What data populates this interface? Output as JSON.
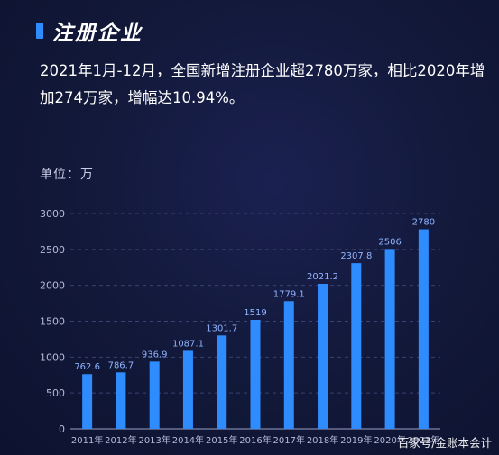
{
  "header": {
    "title": "注册企业"
  },
  "summary": "2021年1月-12月，全国新增注册企业超2780万家，相比2020年增加274万家，增幅达10.94%。",
  "unit_label": "单位：万",
  "watermark": "百家号/金账本会计",
  "colors": {
    "bar": "#2f8cff",
    "value_label": "#8fb4ff",
    "background": "#121838"
  },
  "chart_data": {
    "type": "bar",
    "categories": [
      "2011年",
      "2012年",
      "2013年",
      "2014年",
      "2015年",
      "2016年",
      "2017年",
      "2018年",
      "2019年",
      "2020年",
      "2021年"
    ],
    "values": [
      762.6,
      786.7,
      936.9,
      1087.1,
      1301.7,
      1519,
      1779.1,
      2021.2,
      2307.8,
      2506,
      2780
    ],
    "value_labels": [
      "762.6",
      "786.7",
      "936.9",
      "1087.1",
      "1301.7",
      "1519",
      "1779.1",
      "2021.2",
      "2307.8",
      "2506",
      "2780"
    ],
    "ylim": [
      0,
      3000
    ],
    "yticks": [
      0,
      500,
      1000,
      1500,
      2000,
      2500,
      3000
    ],
    "grid": true
  }
}
